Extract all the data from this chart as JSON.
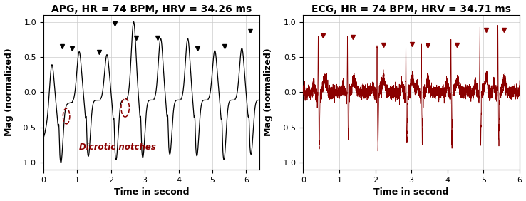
{
  "apg_title": "APG, HR = 74 BPM, HRV = 34.26 ms",
  "ecg_title": "ECG, HR = 74 BPM, HRV = 34.71 ms",
  "xlabel": "Time in second",
  "ylabel": "Mag (normalized)",
  "apg_xlim": [
    0,
    6.4
  ],
  "ecg_xlim": [
    0,
    6.0
  ],
  "ylim": [
    -1.1,
    1.1
  ],
  "yticks": [
    -1,
    -0.5,
    0,
    0.5,
    1
  ],
  "xticks": [
    0,
    1,
    2,
    3,
    4,
    5,
    6
  ],
  "apg_color": "#000000",
  "ecg_color": "#8B0000",
  "dicrotic_color": "#8B0000",
  "dicrotic_label": "Dicrotic notches",
  "apg_peak_times": [
    0.55,
    0.84,
    1.65,
    2.12,
    2.75,
    3.37,
    4.55,
    5.35,
    6.12
  ],
  "apg_peak_vals": [
    0.65,
    0.62,
    0.57,
    0.98,
    0.77,
    0.77,
    0.62,
    0.65,
    0.87
  ],
  "ecg_peak_times": [
    0.55,
    1.38,
    2.22,
    3.02,
    3.45,
    4.27,
    5.07,
    5.57
  ],
  "ecg_peak_vals": [
    0.8,
    0.78,
    0.67,
    0.68,
    0.66,
    0.67,
    0.88,
    0.88
  ],
  "grid_color": "#cccccc",
  "bg_color": "#ffffff",
  "title_fontsize": 10,
  "label_fontsize": 9,
  "tick_fontsize": 8
}
